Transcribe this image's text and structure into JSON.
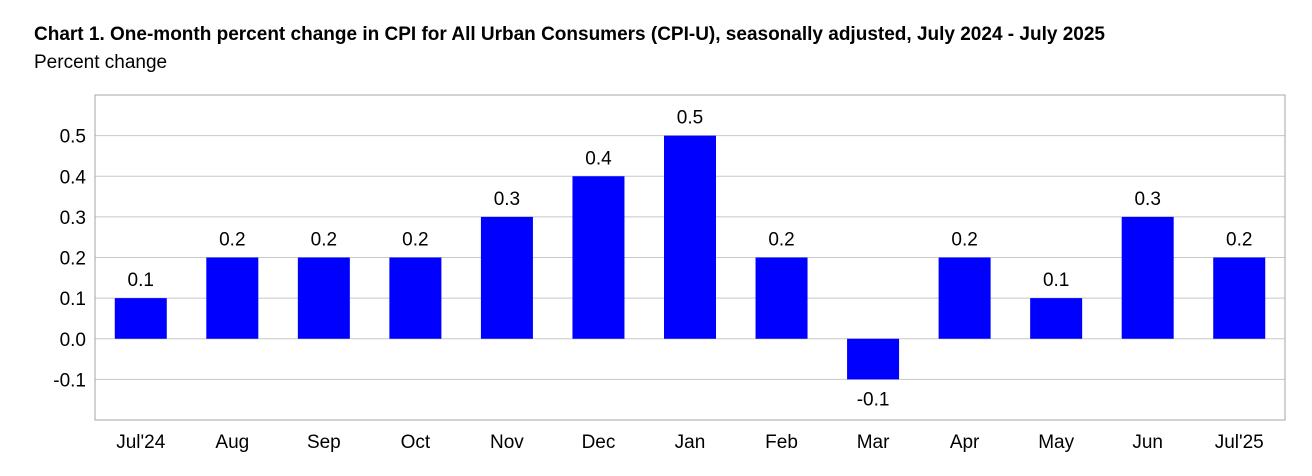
{
  "chart_data": {
    "type": "bar",
    "title": "Chart 1. One-month percent change in CPI for All Urban Consumers (CPI-U), seasonally adjusted, July 2024 - July 2025",
    "subtitle": "Percent change",
    "xlabel": "",
    "ylabel": "",
    "categories": [
      "Jul'24",
      "Aug",
      "Sep",
      "Oct",
      "Nov",
      "Dec",
      "Jan",
      "Feb",
      "Mar",
      "Apr",
      "May",
      "Jun",
      "Jul'25"
    ],
    "values": [
      0.1,
      0.2,
      0.2,
      0.2,
      0.3,
      0.4,
      0.5,
      0.2,
      -0.1,
      0.2,
      0.1,
      0.3,
      0.2
    ],
    "data_labels": [
      "0.1",
      "0.2",
      "0.2",
      "0.2",
      "0.3",
      "0.4",
      "0.5",
      "0.2",
      "-0.1",
      "0.2",
      "0.1",
      "0.3",
      "0.2"
    ],
    "yticks": [
      -0.1,
      0.0,
      0.1,
      0.2,
      0.3,
      0.4,
      0.5
    ],
    "ytick_labels": [
      "-0.1",
      "0.0",
      "0.1",
      "0.2",
      "0.3",
      "0.4",
      "0.5"
    ],
    "ylim": [
      -0.2,
      0.6
    ],
    "grid": true,
    "legend": "none",
    "colors": {
      "bar": "#0000ff",
      "grid": "#c8c8c8",
      "frame": "#a6a6a6"
    }
  }
}
